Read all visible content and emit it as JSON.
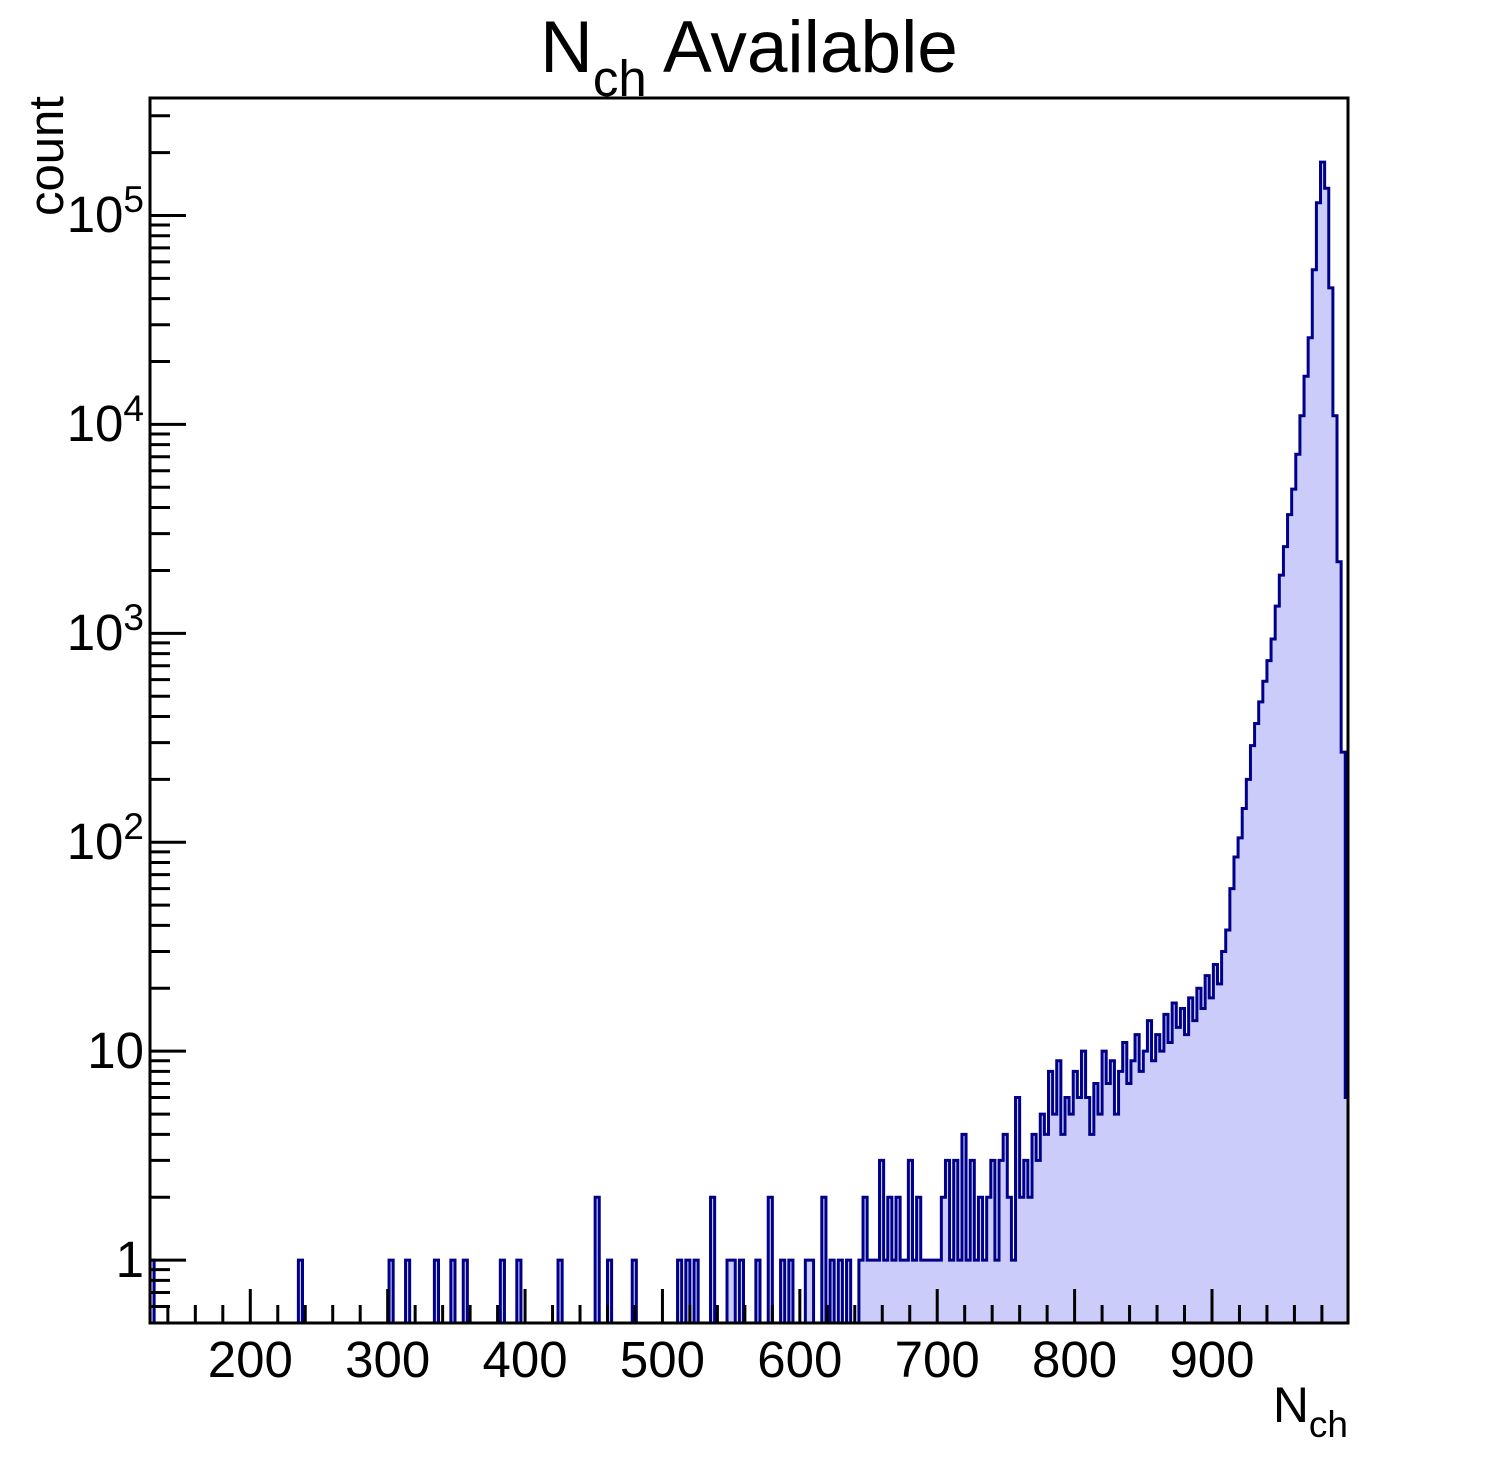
{
  "chart_data": {
    "type": "histogram",
    "title": {
      "main": "N",
      "sub": "ch",
      "rest": " Available"
    },
    "ylabel": "count",
    "xlabel": {
      "main": "N",
      "sub": "ch"
    },
    "y_scale": "log",
    "x_range": [
      127,
      999
    ],
    "y_range": [
      0.5,
      365000
    ],
    "bin_width": 3,
    "x_axis": {
      "major_ticks": [
        200,
        300,
        400,
        500,
        600,
        700,
        800,
        900
      ],
      "minor_step": 20,
      "minor_start": 140,
      "minor_end": 980
    },
    "y_axis": {
      "ticks": [
        {
          "v": 1,
          "base": "1",
          "exp": ""
        },
        {
          "v": 10,
          "base": "10",
          "exp": ""
        },
        {
          "v": 100,
          "base": "10",
          "exp": "2"
        },
        {
          "v": 1000,
          "base": "10",
          "exp": "3"
        },
        {
          "v": 10000,
          "base": "10",
          "exp": "4"
        },
        {
          "v": 100000,
          "base": "10",
          "exp": "5"
        }
      ]
    },
    "style": {
      "fill_color": "#ccccfa",
      "line_color": "#00008b",
      "frame_color": "#000000",
      "background": "#ffffff"
    },
    "bins": [
      [
        127,
        1
      ],
      [
        235,
        1
      ],
      [
        301,
        1
      ],
      [
        313,
        1
      ],
      [
        334,
        1
      ],
      [
        346,
        1
      ],
      [
        355,
        1
      ],
      [
        382,
        1
      ],
      [
        394,
        1
      ],
      [
        424,
        1
      ],
      [
        451,
        2
      ],
      [
        460,
        1
      ],
      [
        478,
        1
      ],
      [
        511,
        1
      ],
      [
        517,
        1
      ],
      [
        523,
        1
      ],
      [
        535,
        2
      ],
      [
        547,
        1
      ],
      [
        550,
        1
      ],
      [
        556,
        1
      ],
      [
        568,
        1
      ],
      [
        577,
        2
      ],
      [
        586,
        1
      ],
      [
        592,
        1
      ],
      [
        604,
        1
      ],
      [
        607,
        1
      ],
      [
        616,
        2
      ],
      [
        622,
        1
      ],
      [
        628,
        1
      ],
      [
        634,
        1
      ],
      [
        643,
        1
      ],
      [
        646,
        2
      ],
      [
        649,
        1
      ],
      [
        652,
        1
      ],
      [
        655,
        1
      ],
      [
        658,
        3
      ],
      [
        661,
        1
      ],
      [
        664,
        2
      ],
      [
        667,
        1
      ],
      [
        670,
        2
      ],
      [
        673,
        1
      ],
      [
        676,
        1
      ],
      [
        679,
        3
      ],
      [
        682,
        1
      ],
      [
        685,
        2
      ],
      [
        688,
        1
      ],
      [
        691,
        1
      ],
      [
        694,
        1
      ],
      [
        697,
        1
      ],
      [
        700,
        1
      ],
      [
        703,
        2
      ],
      [
        706,
        3
      ],
      [
        709,
        1
      ],
      [
        712,
        3
      ],
      [
        715,
        1
      ],
      [
        718,
        4
      ],
      [
        721,
        1
      ],
      [
        724,
        3
      ],
      [
        727,
        1
      ],
      [
        730,
        2
      ],
      [
        733,
        1
      ],
      [
        736,
        2
      ],
      [
        739,
        3
      ],
      [
        742,
        1
      ],
      [
        745,
        3
      ],
      [
        748,
        4
      ],
      [
        751,
        2
      ],
      [
        754,
        1
      ],
      [
        757,
        6
      ],
      [
        760,
        2
      ],
      [
        763,
        3
      ],
      [
        766,
        2
      ],
      [
        769,
        4
      ],
      [
        772,
        3
      ],
      [
        775,
        5
      ],
      [
        778,
        4
      ],
      [
        781,
        8
      ],
      [
        784,
        5
      ],
      [
        787,
        9
      ],
      [
        790,
        4
      ],
      [
        793,
        6
      ],
      [
        796,
        5
      ],
      [
        799,
        8
      ],
      [
        802,
        6
      ],
      [
        805,
        10
      ],
      [
        808,
        6
      ],
      [
        811,
        4
      ],
      [
        814,
        7
      ],
      [
        817,
        5
      ],
      [
        820,
        10
      ],
      [
        823,
        7
      ],
      [
        826,
        9
      ],
      [
        829,
        5
      ],
      [
        832,
        8
      ],
      [
        835,
        11
      ],
      [
        838,
        7
      ],
      [
        841,
        9
      ],
      [
        844,
        12
      ],
      [
        847,
        8
      ],
      [
        850,
        10
      ],
      [
        853,
        14
      ],
      [
        856,
        9
      ],
      [
        859,
        12
      ],
      [
        862,
        10
      ],
      [
        865,
        15
      ],
      [
        868,
        11
      ],
      [
        871,
        17
      ],
      [
        874,
        13
      ],
      [
        877,
        16
      ],
      [
        880,
        12
      ],
      [
        883,
        18
      ],
      [
        886,
        14
      ],
      [
        889,
        20
      ],
      [
        892,
        16
      ],
      [
        895,
        23
      ],
      [
        898,
        18
      ],
      [
        901,
        26
      ],
      [
        904,
        21
      ],
      [
        907,
        30
      ],
      [
        910,
        38
      ],
      [
        913,
        60
      ],
      [
        916,
        85
      ],
      [
        919,
        105
      ],
      [
        922,
        145
      ],
      [
        925,
        200
      ],
      [
        928,
        290
      ],
      [
        931,
        370
      ],
      [
        934,
        470
      ],
      [
        937,
        590
      ],
      [
        940,
        740
      ],
      [
        943,
        940
      ],
      [
        946,
        1350
      ],
      [
        949,
        1900
      ],
      [
        952,
        2600
      ],
      [
        955,
        3700
      ],
      [
        958,
        4900
      ],
      [
        961,
        7200
      ],
      [
        964,
        11000
      ],
      [
        967,
        17000
      ],
      [
        970,
        26000
      ],
      [
        973,
        55000
      ],
      [
        976,
        115000
      ],
      [
        979,
        180000
      ],
      [
        982,
        135000
      ],
      [
        985,
        45000
      ],
      [
        988,
        11000
      ],
      [
        991,
        2200
      ],
      [
        994,
        270
      ],
      [
        997,
        6
      ]
    ]
  }
}
